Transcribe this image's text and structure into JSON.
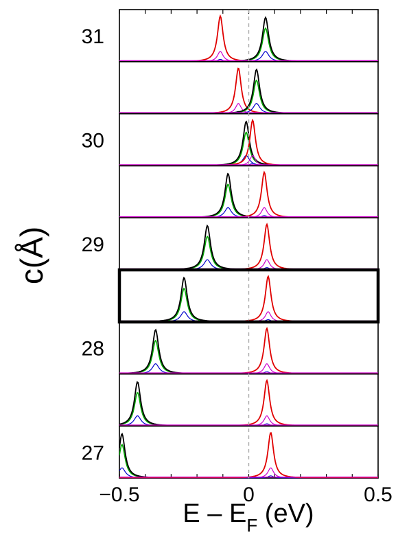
{
  "chart_data": {
    "type": "line",
    "xlabel": "E – E",
    "xlabel_subscript": "F",
    "xlabel_unit": " (eV)",
    "ylabel_prefix": "c(",
    "ylabel_symbol": "Å",
    "ylabel_suffix": ")",
    "xlim": [
      -0.5,
      0.5
    ],
    "x_ticks": [
      -0.5,
      0,
      0.5
    ],
    "x_tick_labels": [
      "−0.5",
      "0",
      "0.5"
    ],
    "fermi_line": {
      "x": 0,
      "style": "dashed",
      "color": "#aaaaaa"
    },
    "highlighted_panel": 5,
    "row_labels": [
      {
        "text": "31",
        "panel": 0
      },
      {
        "text": "30",
        "panel": 2
      },
      {
        "text": "29",
        "panel": 4
      },
      {
        "text": "28",
        "panel": 6
      },
      {
        "text": "27",
        "panel": 8
      }
    ],
    "panels": [
      {
        "left_peak": {
          "x": -0.11,
          "color": "#e00000"
        },
        "right_peak": {
          "x": 0.065,
          "color": "#000000"
        }
      },
      {
        "left_peak": {
          "x": -0.04,
          "color": "#e00000"
        },
        "right_peak": {
          "x": 0.03,
          "color": "#000000"
        }
      },
      {
        "left_peak": {
          "x": -0.01,
          "color": "#000000"
        },
        "right_peak": {
          "x": 0.015,
          "color": "#e00000"
        }
      },
      {
        "left_peak": {
          "x": -0.08,
          "color": "#000000"
        },
        "right_peak": {
          "x": 0.06,
          "color": "#e00000"
        }
      },
      {
        "left_peak": {
          "x": -0.16,
          "color": "#000000"
        },
        "right_peak": {
          "x": 0.07,
          "color": "#e00000"
        }
      },
      {
        "left_peak": {
          "x": -0.25,
          "color": "#000000"
        },
        "right_peak": {
          "x": 0.075,
          "color": "#e00000"
        }
      },
      {
        "left_peak": {
          "x": -0.36,
          "color": "#000000"
        },
        "right_peak": {
          "x": 0.07,
          "color": "#e00000"
        }
      },
      {
        "left_peak": {
          "x": -0.43,
          "color": "#000000"
        },
        "right_peak": {
          "x": 0.07,
          "color": "#e00000"
        }
      },
      {
        "left_peak": {
          "x": -0.49,
          "color": "#000000"
        },
        "right_peak": {
          "x": 0.085,
          "color": "#e00000"
        }
      }
    ],
    "series_colors": {
      "total": "#000000",
      "green": "#00aa00",
      "blue": "#0000cc",
      "magenta": "#cc00cc",
      "red": "#e00000"
    }
  }
}
